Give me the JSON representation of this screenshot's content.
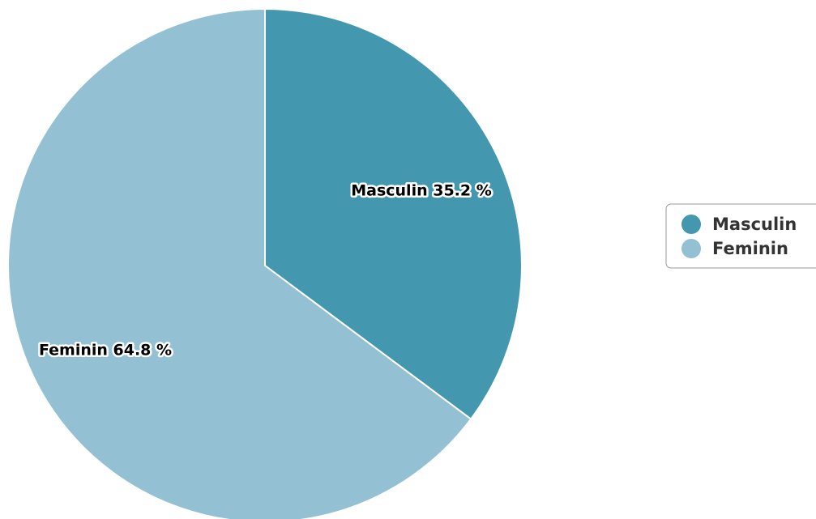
{
  "chart_data": {
    "type": "pie",
    "title": "",
    "legend_position": "right",
    "slices": [
      {
        "name": "Masculin",
        "value": 35.2,
        "label": "Masculin 35.2 %",
        "color": "#4398b0"
      },
      {
        "name": "Feminin",
        "value": 64.8,
        "label": "Feminin 64.8 %",
        "color": "#93c1d3"
      }
    ]
  }
}
